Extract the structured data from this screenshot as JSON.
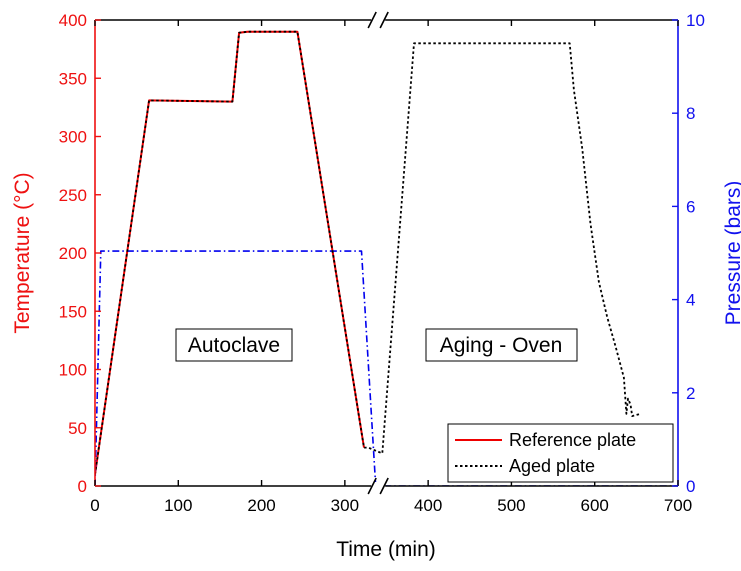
{
  "chart_data": {
    "type": "line",
    "xlabel": "Time (min)",
    "ylabel_left": "Temperature (°C)",
    "ylabel_right": "Pressure (bars)",
    "xlim": [
      0,
      700
    ],
    "ylim_left": [
      0,
      400
    ],
    "ylim_right": [
      0,
      10
    ],
    "x_ticks": [
      0,
      100,
      200,
      300,
      400,
      500,
      600,
      700
    ],
    "y_left_ticks": [
      0,
      50,
      100,
      150,
      200,
      250,
      300,
      350,
      400
    ],
    "y_right_ticks": [
      0,
      2,
      4,
      6,
      8,
      10
    ],
    "axis_break_x": 340,
    "grid": false,
    "legend_position": "bottom-right",
    "colors": {
      "left_axis": "#ee1111",
      "right_axis": "#1111ee",
      "reference": "#ee0000",
      "aged": "#000000",
      "pressure": "#0000ee"
    },
    "annotations": [
      "Autoclave",
      "Aging - Oven"
    ],
    "series": [
      {
        "name": "Reference plate",
        "axis": "left",
        "style": "solid",
        "x": [
          0,
          65,
          165,
          173,
          183,
          203,
          243,
          323
        ],
        "y": [
          10,
          331,
          330,
          389,
          390,
          390,
          390,
          33
        ]
      },
      {
        "name": "Aged plate",
        "axis": "left",
        "style": "dotted",
        "x": [
          0,
          65,
          165,
          173,
          183,
          203,
          243,
          323,
          328,
          345,
          383,
          400,
          500,
          570,
          575,
          585,
          595,
          605,
          615,
          625,
          635,
          638,
          640,
          643,
          645,
          655
        ],
        "y": [
          10,
          331,
          330,
          389,
          390,
          390,
          390,
          33,
          33,
          28,
          380,
          380,
          380,
          380,
          340,
          290,
          225,
          175,
          145,
          120,
          93,
          62,
          75,
          70,
          60,
          62
        ]
      },
      {
        "axis": "right",
        "style": "dash-dot",
        "x": [
          0,
          7,
          100,
          200,
          300,
          320,
          337,
          345,
          400,
          500,
          600,
          700
        ],
        "y": [
          0,
          5.04,
          5.04,
          5.04,
          5.04,
          5.04,
          0,
          0,
          0,
          0,
          0,
          0
        ]
      }
    ]
  }
}
